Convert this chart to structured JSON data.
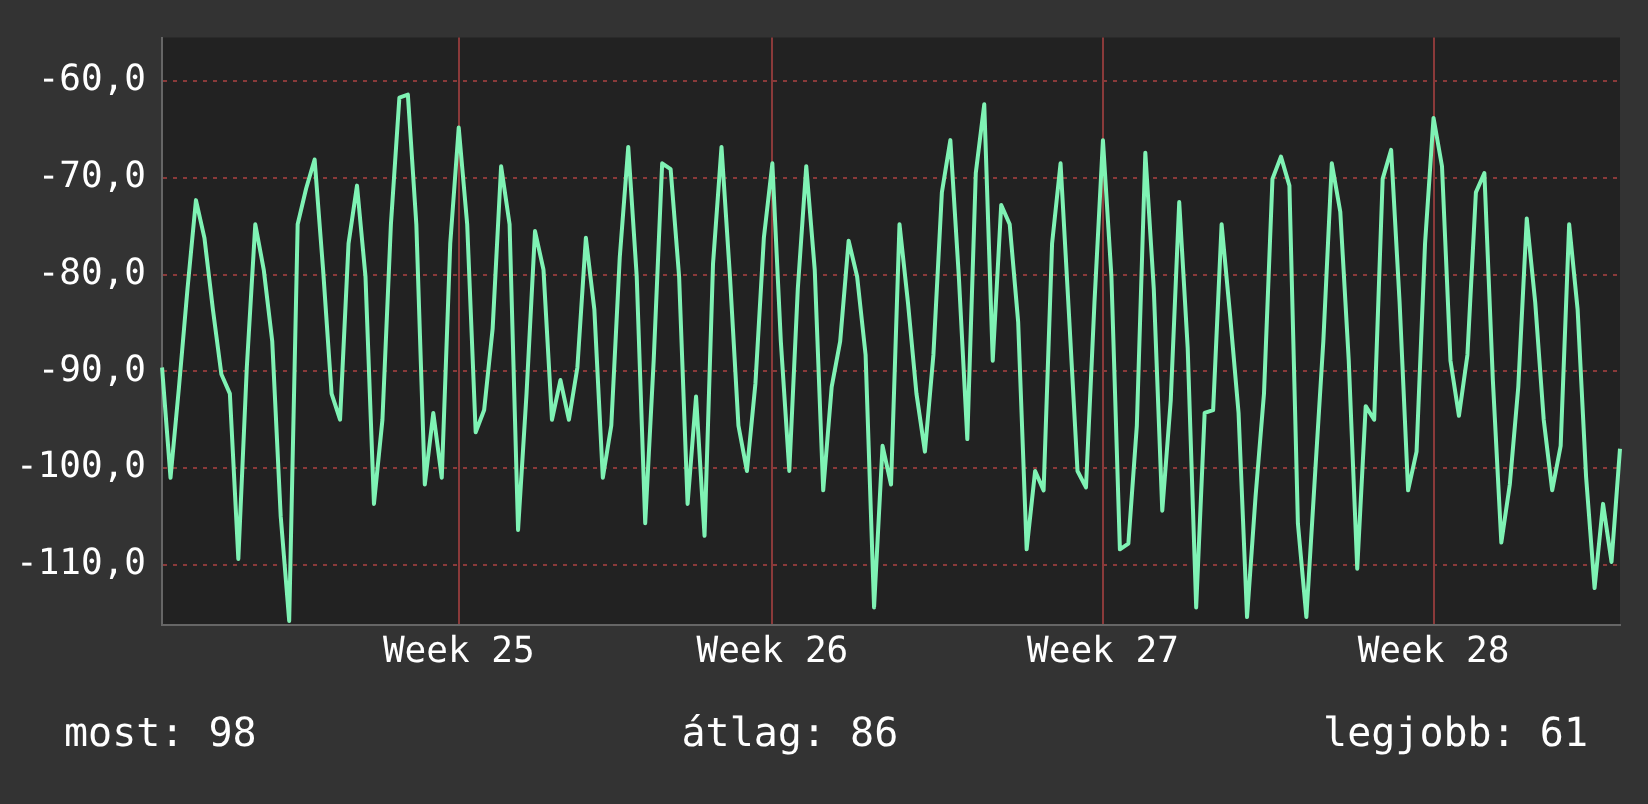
{
  "chart_data": {
    "type": "line",
    "categories": [
      null,
      null,
      null,
      null,
      null,
      null,
      null,
      null,
      null,
      null,
      null,
      null,
      null,
      null,
      null,
      null,
      null,
      null,
      null,
      null,
      null,
      null,
      null,
      null,
      null,
      null,
      null,
      null,
      null,
      null,
      null,
      null,
      null,
      null,
      null,
      "Week 25",
      null,
      null,
      null,
      null,
      null,
      null,
      null,
      null,
      null,
      null,
      null,
      null,
      null,
      null,
      null,
      null,
      null,
      null,
      null,
      null,
      null,
      null,
      null,
      null,
      null,
      null,
      null,
      null,
      null,
      null,
      null,
      null,
      null,
      null,
      null,
      null,
      "Week 26",
      null,
      null,
      null,
      null,
      null,
      null,
      null,
      null,
      null,
      null,
      null,
      null,
      null,
      null,
      null,
      null,
      null,
      null,
      null,
      null,
      null,
      null,
      null,
      null,
      null,
      null,
      null,
      null,
      null,
      null,
      null,
      null,
      null,
      null,
      null,
      null,
      null,
      null,
      "Week 27",
      null,
      null,
      null,
      null,
      null,
      null,
      null,
      null,
      null,
      null,
      null,
      null,
      null,
      null,
      null,
      null,
      null,
      null,
      null,
      null,
      null,
      null,
      null,
      null,
      null,
      null,
      null,
      null,
      null,
      null,
      null,
      null,
      null,
      null,
      null,
      null,
      null,
      null,
      "Week 28",
      null,
      null,
      null,
      null,
      null,
      null,
      null,
      null,
      null,
      null,
      null,
      null,
      null,
      null,
      null,
      null,
      null,
      null,
      null,
      null,
      null,
      null
    ],
    "series": [
      {
        "color": "#7ff2b4",
        "values": [
          -89.6,
          -101,
          -91.6,
          -81.5,
          -72.3,
          -76.2,
          -83.6,
          -90.3,
          -92.3,
          -109.4,
          -89.6,
          -74.8,
          -79.5,
          -86.9,
          -105,
          -115.8,
          -74.8,
          -71.1,
          -68.1,
          -79.5,
          -92.3,
          -95,
          -76.8,
          -70.8,
          -80.2,
          -103.7,
          -95,
          -74.8,
          -61.7,
          -61.4,
          -74.8,
          -101.7,
          -94.3,
          -101,
          -76.8,
          -64.8,
          -74.8,
          -96.3,
          -94,
          -85.6,
          -68.8,
          -74.8,
          -106.4,
          -92.3,
          -75.5,
          -79.5,
          -95,
          -90.9,
          -95,
          -89.6,
          -76.2,
          -83.6,
          -101,
          -95.6,
          -78.2,
          -66.8,
          -80.2,
          -105.7,
          -88.9,
          -68.5,
          -69.1,
          -80.2,
          -103.7,
          -92.6,
          -107,
          -78.9,
          -66.8,
          -80.2,
          -95.6,
          -100.3,
          -91.3,
          -76.2,
          -68.5,
          -86.9,
          -100.3,
          -81.5,
          -68.8,
          -79.5,
          -102.3,
          -91.6,
          -86.9,
          -76.5,
          -80.2,
          -88.3,
          -114.4,
          -97.7,
          -101.7,
          -74.8,
          -82.9,
          -92.3,
          -98.3,
          -88.3,
          -71.5,
          -66.1,
          -80.2,
          -97,
          -69.5,
          -62.4,
          -88.9,
          -72.8,
          -74.8,
          -84.9,
          -108.4,
          -100.3,
          -102.3,
          -76.8,
          -68.5,
          -84.2,
          -100.3,
          -102,
          -82.9,
          -66.1,
          -80.2,
          -108.4,
          -107.8,
          -95.6,
          -67.4,
          -81.5,
          -104.4,
          -93,
          -72.5,
          -87.6,
          -114.4,
          -94.3,
          -94,
          -74.8,
          -84.2,
          -94.3,
          -115.4,
          -103,
          -92.3,
          -70.1,
          -67.8,
          -70.8,
          -105.7,
          -115.4,
          -101,
          -86.9,
          -68.5,
          -73.5,
          -88.9,
          -110.4,
          -93.6,
          -95,
          -70.1,
          -67.1,
          -82.9,
          -102.3,
          -98.3,
          -76.8,
          -63.8,
          -68.8,
          -88.9,
          -94.6,
          -88.3,
          -71.5,
          -69.5,
          -90.9,
          -107.7,
          -101.7,
          -91.6,
          -74.2,
          -82.9,
          -95,
          -102.3,
          -97.7,
          -74.8,
          -83.6,
          -100.9,
          -112.4,
          -103.7,
          -109.7,
          -98
        ]
      }
    ],
    "ylim": [
      -116.2,
      -55.5
    ],
    "yticks": [
      {
        "value": -60,
        "label": "-60,0"
      },
      {
        "value": -70,
        "label": "-70,0"
      },
      {
        "value": -80,
        "label": "-80,0"
      },
      {
        "value": -90,
        "label": "-90,0"
      },
      {
        "value": -100,
        "label": "-100,0"
      },
      {
        "value": -110,
        "label": "-110,0"
      }
    ],
    "grid": true,
    "legend": false,
    "marker": "none",
    "line_style": "solid",
    "annotations": [
      "most: 98",
      "átlag: 86",
      "legjobb: 61"
    ]
  }
}
